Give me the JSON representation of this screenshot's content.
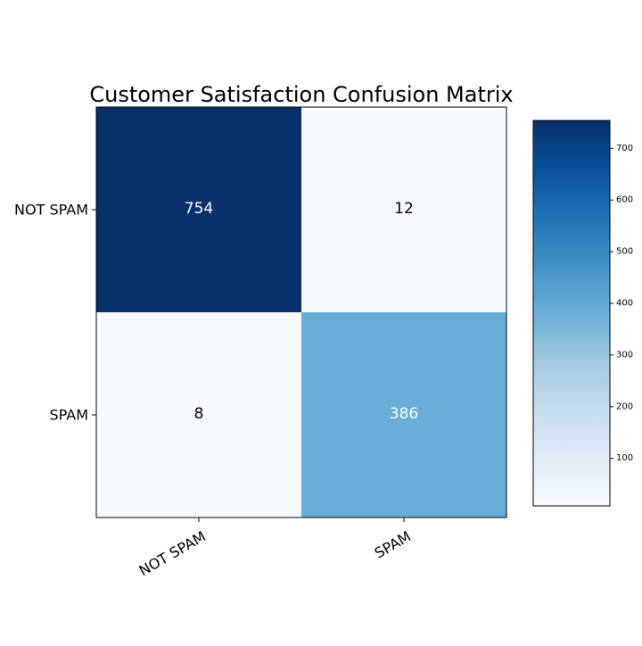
{
  "chart_data": {
    "type": "heatmap",
    "title": "Customer Satisfaction Confusion Matrix",
    "row_labels": [
      "NOT SPAM",
      "SPAM"
    ],
    "col_labels": [
      "NOT SPAM",
      "SPAM"
    ],
    "matrix": [
      [
        754,
        12
      ],
      [
        8,
        386
      ]
    ],
    "colormap": "Blues",
    "value_range": [
      8,
      754
    ],
    "colorbar_ticks": [
      100,
      200,
      300,
      400,
      500,
      600,
      700
    ],
    "colors": {
      "cmap_low": "#f7fbff",
      "cmap_high": "#08306b",
      "text_dark": "#000000",
      "text_light": "#ffffff"
    }
  }
}
